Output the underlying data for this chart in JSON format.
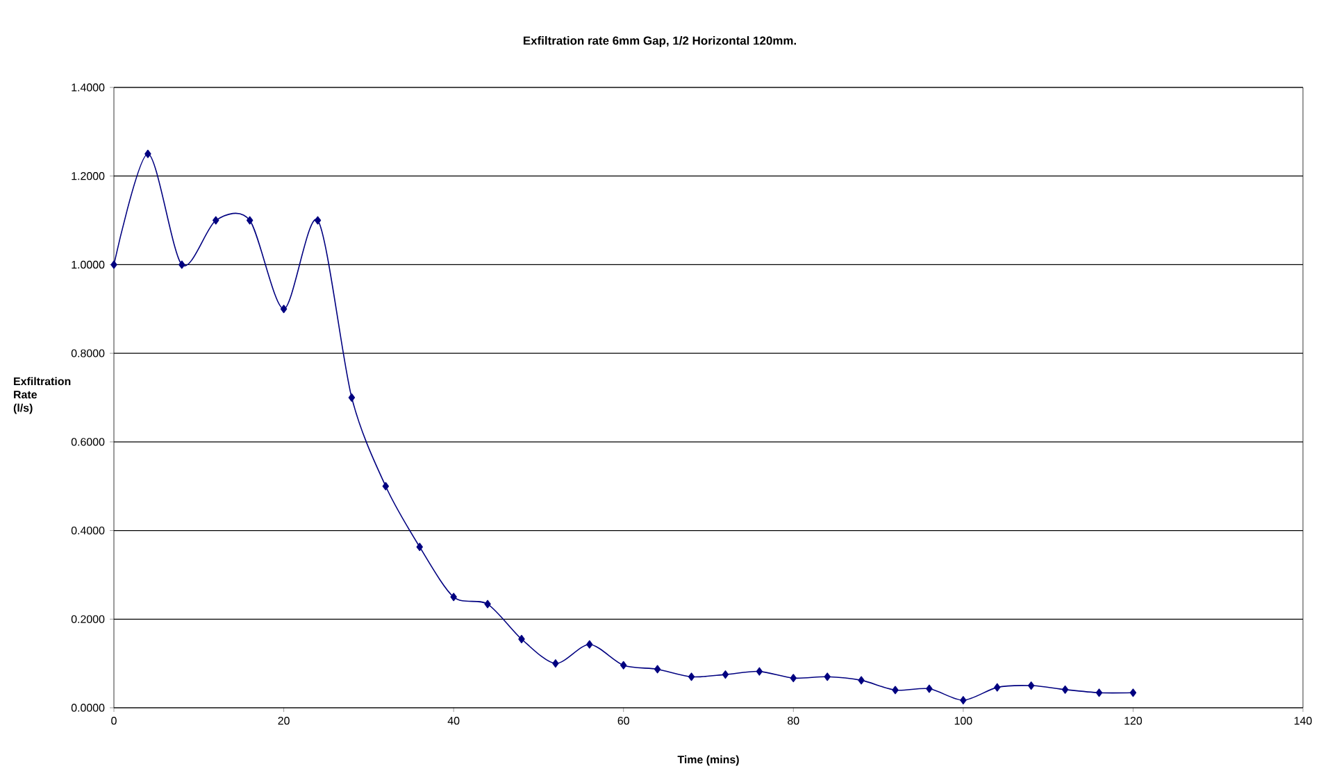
{
  "chart_data": {
    "type": "line",
    "title": "Exfiltration rate 6mm Gap, 1/2 Horizontal 120mm.",
    "xlabel": "Time (mins)",
    "ylabel": "Exfiltration Rate (l/s)",
    "x": [
      0,
      4,
      8,
      12,
      16,
      20,
      24,
      28,
      32,
      36,
      40,
      44,
      48,
      52,
      56,
      60,
      64,
      68,
      72,
      76,
      80,
      84,
      88,
      92,
      96,
      100,
      104,
      108,
      112,
      116,
      120
    ],
    "series": [
      {
        "color": "#000080",
        "values": [
          1.0,
          1.25,
          1.0,
          1.1,
          1.1,
          0.9,
          1.1,
          0.7,
          0.5,
          0.363,
          0.25,
          0.234,
          0.155,
          0.1,
          0.143,
          0.096,
          0.087,
          0.07,
          0.075,
          0.082,
          0.067,
          0.07,
          0.062,
          0.04,
          0.043,
          0.017,
          0.046,
          0.05,
          0.041,
          0.034,
          0.034
        ]
      }
    ],
    "xlim": [
      0,
      140
    ],
    "xticks": [
      0,
      20,
      40,
      60,
      80,
      100,
      120,
      140
    ],
    "ylim": [
      0,
      1.4
    ],
    "yticks": [
      {
        "value": 0,
        "label": "0.0000"
      },
      {
        "value": 0.2,
        "label": "0.2000"
      },
      {
        "value": 0.4,
        "label": "0.4000"
      },
      {
        "value": 0.6,
        "label": "0.6000"
      },
      {
        "value": 0.8,
        "label": "0.8000"
      },
      {
        "value": 1.0,
        "label": "1.0000"
      },
      {
        "value": 1.2,
        "label": "1.2000"
      },
      {
        "value": 1.4,
        "label": "1.4000"
      }
    ],
    "grid": "y",
    "marker": "diamond",
    "line_style": "solid"
  }
}
